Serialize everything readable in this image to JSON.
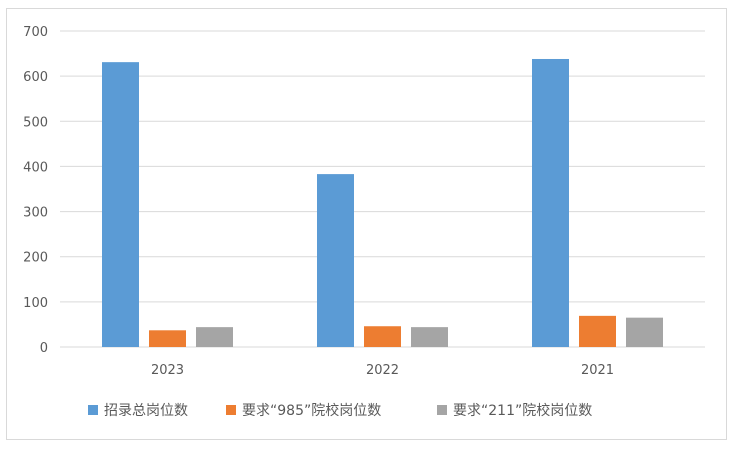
{
  "chart_data": {
    "type": "bar",
    "categories": [
      "2023",
      "2022",
      "2021"
    ],
    "series": [
      {
        "name": "招录总岗位数",
        "values": [
          631,
          383,
          638
        ],
        "color": "#5b9bd5"
      },
      {
        "name": "要求“985”院校岗位数",
        "values": [
          37,
          46,
          69
        ],
        "color": "#ed7d31"
      },
      {
        "name": "要求“211”院校岗位数",
        "values": [
          44,
          44,
          65
        ],
        "color": "#a5a5a5"
      }
    ],
    "yticks": [
      "0",
      "100",
      "200",
      "300",
      "400",
      "500",
      "600",
      "700"
    ],
    "ylim": [
      0,
      700
    ],
    "grid": true,
    "legend_position": "bottom",
    "gridline_color": "#d9d9d9"
  }
}
